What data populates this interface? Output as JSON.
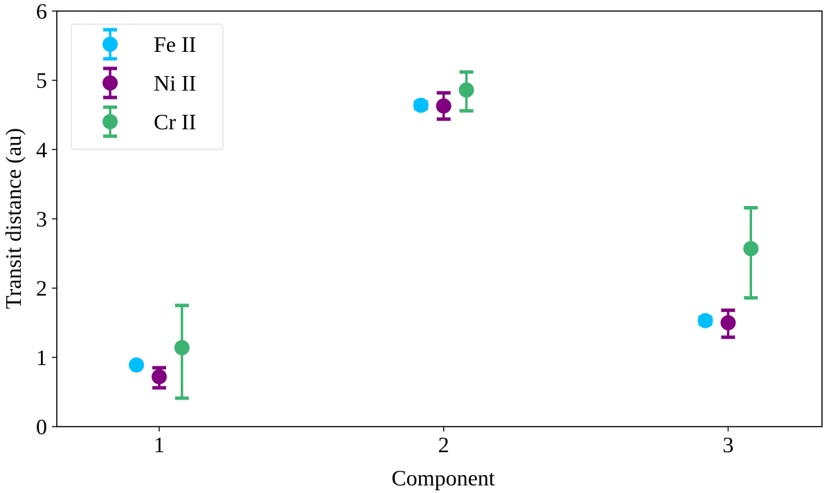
{
  "chart_data": {
    "type": "scatter",
    "title": "",
    "xlabel": "Component",
    "ylabel": "Transit distance (au)",
    "xlim": [
      0.64,
      3.33
    ],
    "ylim": [
      0,
      6
    ],
    "x_ticks": [
      1,
      2,
      3
    ],
    "y_ticks": [
      0,
      1,
      2,
      3,
      4,
      5,
      6
    ],
    "grid": false,
    "legend_position": "upper left",
    "categories": [
      1,
      2,
      3
    ],
    "series": [
      {
        "name": "Fe II",
        "color": "#00BFFF",
        "x_offset": -0.08,
        "values": [
          0.89,
          4.64,
          1.53
        ],
        "err_low": [
          0.89,
          4.59,
          1.48
        ],
        "err_high": [
          0.89,
          4.69,
          1.58
        ]
      },
      {
        "name": "Ni II",
        "color": "#800080",
        "x_offset": 0.0,
        "values": [
          0.72,
          4.63,
          1.5
        ],
        "err_low": [
          0.56,
          4.44,
          1.29
        ],
        "err_high": [
          0.85,
          4.82,
          1.68
        ]
      },
      {
        "name": "Cr II",
        "color": "#3CB371",
        "x_offset": 0.08,
        "values": [
          1.14,
          4.86,
          2.57
        ],
        "err_low": [
          0.41,
          4.56,
          1.86
        ],
        "err_high": [
          1.75,
          5.12,
          3.16
        ]
      }
    ]
  }
}
